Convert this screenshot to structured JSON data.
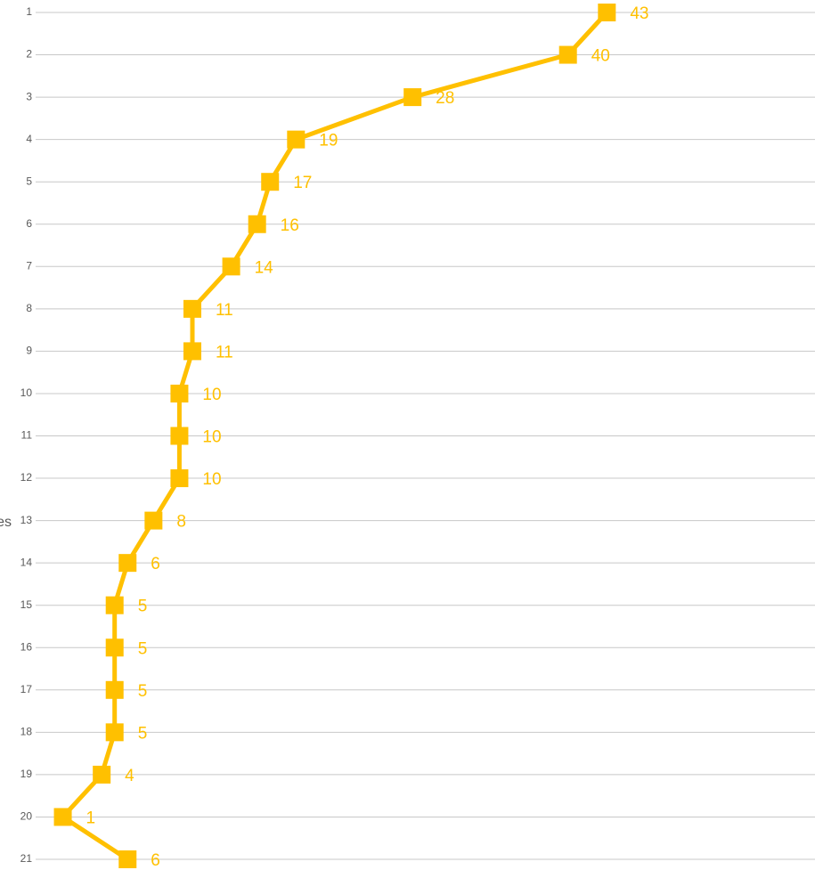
{
  "chart_data": {
    "type": "line",
    "orientation": "categories-vertical",
    "categories": [
      "1",
      "2",
      "3",
      "4",
      "5",
      "6",
      "7",
      "8",
      "9",
      "10",
      "11",
      "12",
      "13",
      "14",
      "15",
      "16",
      "17",
      "18",
      "19",
      "20",
      "21"
    ],
    "values": [
      43,
      40,
      28,
      19,
      17,
      16,
      14,
      11,
      11,
      10,
      10,
      10,
      8,
      6,
      5,
      5,
      5,
      5,
      4,
      1,
      6
    ],
    "ylabel": "es",
    "xlim": [
      0,
      59
    ],
    "grid": true,
    "data_labels": true,
    "marker": "square",
    "line_color": "#FFC000",
    "gridline_color": "#C8C8C8"
  }
}
